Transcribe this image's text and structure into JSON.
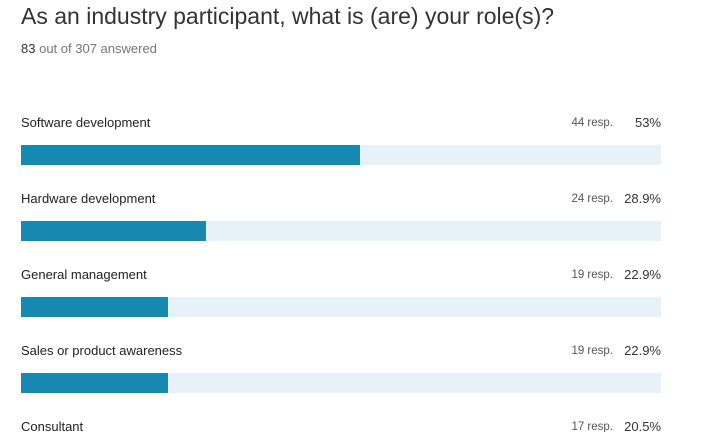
{
  "header": {
    "title": "As an industry participant, what is (are) your role(s)?",
    "answered": 83,
    "answered_text": "out of 307 answered"
  },
  "items": [
    {
      "label": "Software development",
      "responses": 44,
      "responses_label": "44 resp.",
      "percent": 53,
      "percent_label": "53%"
    },
    {
      "label": "Hardware development",
      "responses": 24,
      "responses_label": "24 resp.",
      "percent": 28.9,
      "percent_label": "28.9%"
    },
    {
      "label": "General management",
      "responses": 19,
      "responses_label": "19 resp.",
      "percent": 22.9,
      "percent_label": "22.9%"
    },
    {
      "label": "Sales or product awareness",
      "responses": 19,
      "responses_label": "19 resp.",
      "percent": 22.9,
      "percent_label": "22.9%"
    },
    {
      "label": "Consultant",
      "responses": 17,
      "responses_label": "17 resp.",
      "percent": 20.5,
      "percent_label": "20.5%"
    }
  ],
  "bar_color": "#1789b0",
  "track_color": "#e6f2f7"
}
